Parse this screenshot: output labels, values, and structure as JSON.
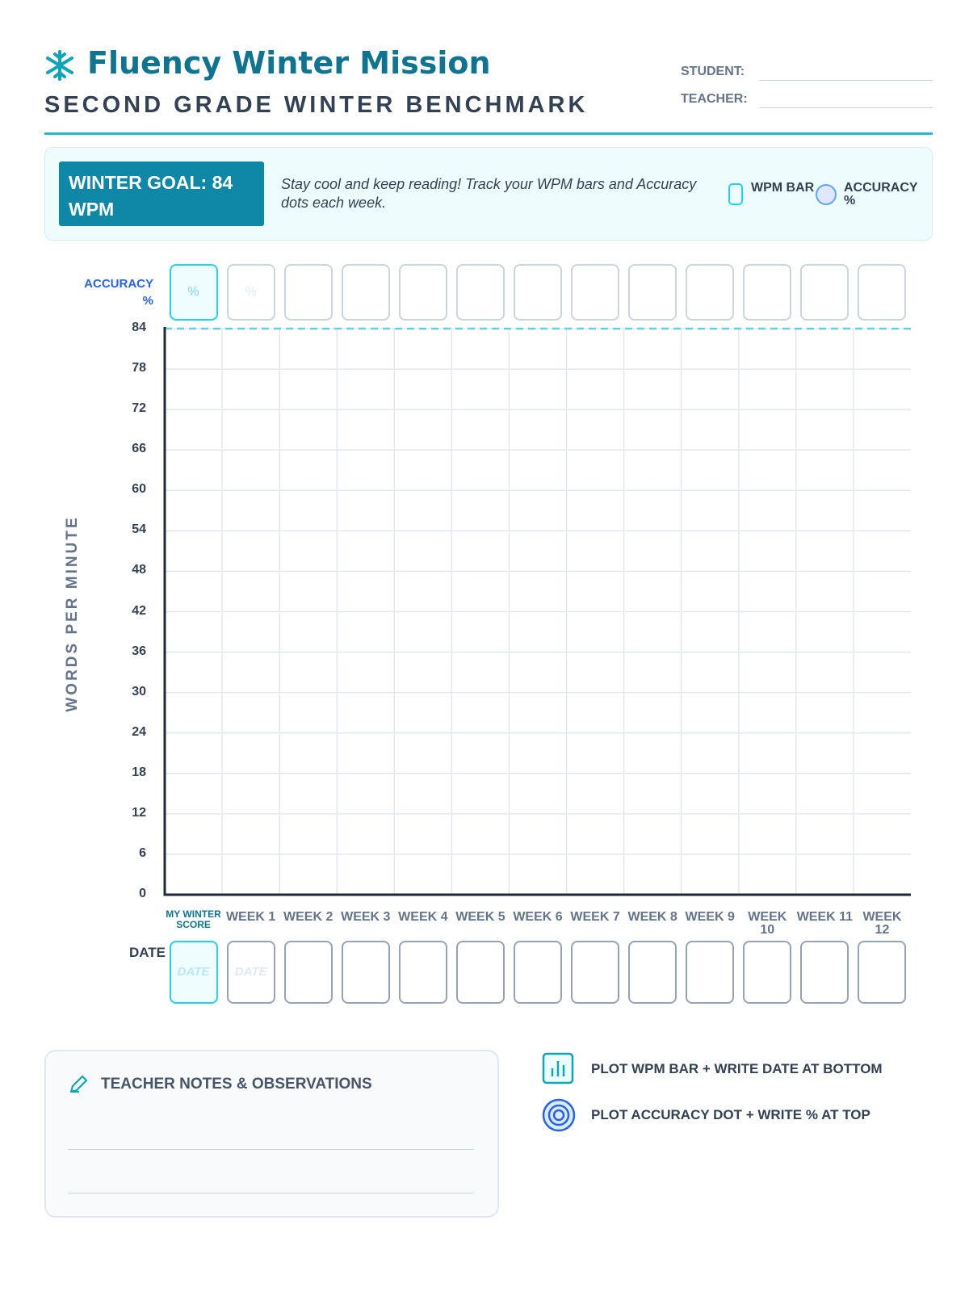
{
  "header": {
    "title": "Fluency Winter Mission",
    "subtitle": "SECOND GRADE WINTER BENCHMARK",
    "student_label": "STUDENT:",
    "teacher_label": "TEACHER:"
  },
  "banner": {
    "goal": "WINTER GOAL: 84 WPM",
    "message": "Stay cool and keep reading! Track your WPM bars and Accuracy dots each week.",
    "legend": [
      "WPM BAR",
      "ACCURACY %"
    ]
  },
  "chart": {
    "accuracy_label": "ACCURACY %",
    "y_axis_label": "WORDS PER MINUTE",
    "ylim": [
      0,
      84
    ],
    "yticks": [
      0,
      6,
      12,
      18,
      24,
      30,
      36,
      42,
      48,
      54,
      60,
      66,
      72,
      78,
      84
    ],
    "columns": [
      "MY WINTER SCORE",
      "WEEK 1",
      "WEEK 2",
      "WEEK 3",
      "WEEK 4",
      "WEEK 5",
      "WEEK 6",
      "WEEK 7",
      "WEEK 8",
      "WEEK 9",
      "WEEK 10",
      "WEEK 11",
      "WEEK 12"
    ],
    "accuracy_boxes": [
      "%",
      "%",
      null,
      null,
      null,
      null,
      null,
      null,
      null,
      null,
      null,
      null,
      null
    ],
    "date_label": "DATE",
    "date_boxes": [
      "DATE",
      "DATE",
      null,
      null,
      null,
      null,
      null,
      null,
      null,
      null,
      null,
      null,
      null
    ]
  },
  "notes": {
    "title": "TEACHER NOTES & OBSERVATIONS"
  },
  "instructions": [
    "PLOT WPM BAR + WRITE DATE AT BOTTOM",
    "PLOT ACCURACY DOT + WRITE % AT TOP"
  ]
}
